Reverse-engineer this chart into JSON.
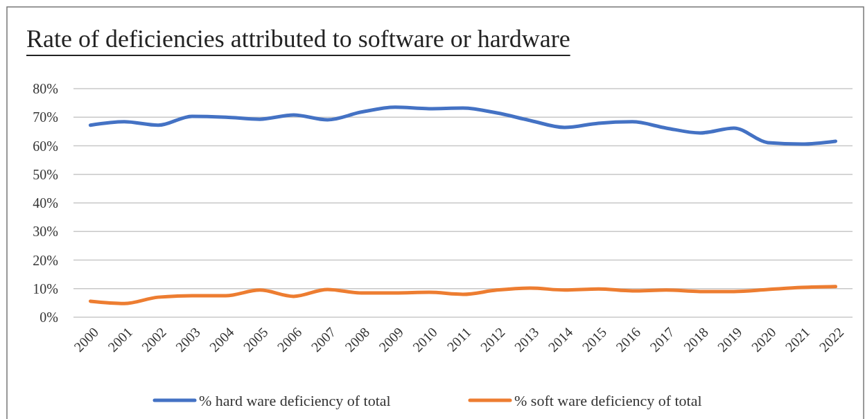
{
  "chart_data": {
    "type": "line",
    "title": "Rate of deficiencies attributed to software or hardware",
    "categories": [
      "2000",
      "2001",
      "2002",
      "2003",
      "2004",
      "2005",
      "2006",
      "2007",
      "2008",
      "2009",
      "2010",
      "2011",
      "2012",
      "2013",
      "2014",
      "2015",
      "2016",
      "2017",
      "2018",
      "2019",
      "2020",
      "2021",
      "2022"
    ],
    "series": [
      {
        "name": "% hard ware deficiency of total",
        "color": "#4472c4",
        "values": [
          67.2,
          68.4,
          67.2,
          70.3,
          70,
          69.3,
          70.8,
          69.1,
          71.8,
          73.5,
          73,
          73.2,
          71.5,
          68.8,
          66.4,
          67.9,
          68.4,
          66.2,
          64.5,
          66.2,
          61.1,
          60.6,
          61.6
        ]
      },
      {
        "name": "% soft ware deficiency of total",
        "color": "#ed7d31",
        "values": [
          5.6,
          4.8,
          7,
          7.5,
          7.5,
          9.5,
          7.3,
          9.7,
          8.5,
          8.5,
          8.7,
          8,
          9.5,
          10.2,
          9.5,
          9.9,
          9.2,
          9.5,
          9,
          9,
          9.7,
          10.4,
          10.7
        ]
      }
    ],
    "ylim": [
      0,
      80
    ],
    "yticks": [
      {
        "value": 0,
        "label": "0%"
      },
      {
        "value": 10,
        "label": "10%"
      },
      {
        "value": 20,
        "label": "20%"
      },
      {
        "value": 30,
        "label": "30%"
      },
      {
        "value": 40,
        "label": "40%"
      },
      {
        "value": 50,
        "label": "50%"
      },
      {
        "value": 60,
        "label": "60%"
      },
      {
        "value": 70,
        "label": "70%"
      },
      {
        "value": 80,
        "label": "80%"
      }
    ],
    "grid": "y",
    "legend": "bottom",
    "marker": "none",
    "line_style": "solid"
  }
}
